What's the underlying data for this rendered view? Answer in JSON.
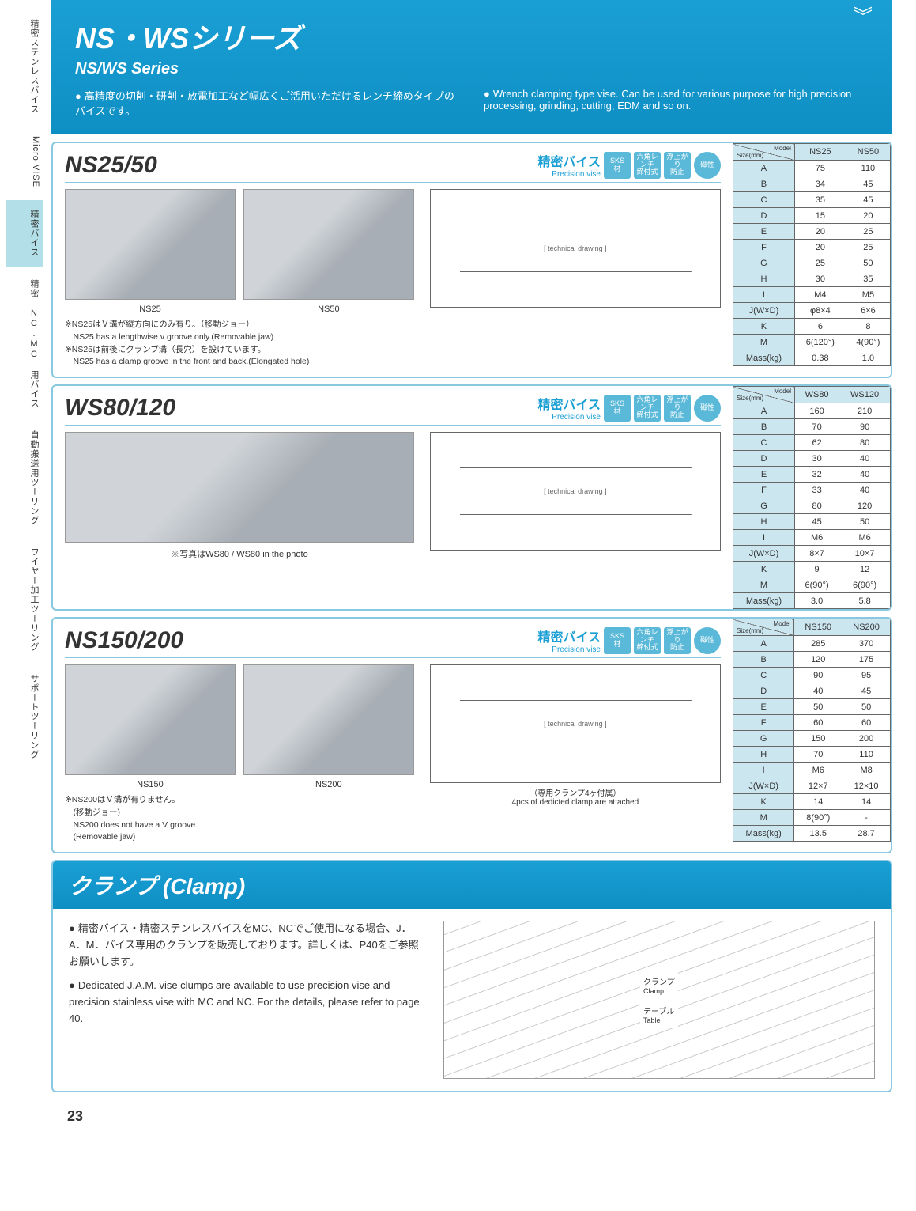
{
  "sidebar": {
    "tabs": [
      {
        "label": "精密ステンレスバイス",
        "active": false
      },
      {
        "label": "Micro VISE",
        "active": false,
        "en": true
      },
      {
        "label": "精密バイス",
        "active": true
      },
      {
        "label": "精密 NC.MC 用バイス",
        "active": false
      },
      {
        "label": "自動搬送用ツーリング",
        "active": false
      },
      {
        "label": "ワイヤー加工ツーリング",
        "active": false
      },
      {
        "label": "サポートツーリング",
        "active": false
      }
    ]
  },
  "header": {
    "title_jp": "NS・WSシリーズ",
    "title_en": "NS/WS Series",
    "desc_jp": "高精度の切削・研削・放電加工など幅広くご活用いただけるレンチ締めタイプのバイスです。",
    "desc_en": "Wrench clamping type vise. Can be used for various purpose for high precision processing, grinding, cutting, EDM and so on."
  },
  "category_label_jp": "精密バイス",
  "category_label_en": "Precision vise",
  "badge_texts": [
    "SKS\n材",
    "六角レンチ\n締付式",
    "浮上がり\n防止",
    "磁性"
  ],
  "products": [
    {
      "title": "NS25/50",
      "photo_labels": [
        "NS25",
        "NS50"
      ],
      "notes": [
        "※NS25はＶ溝が縦方向にのみ有り。（移動ジョー）",
        "　NS25 has a lengthwise v groove only.(Removable jaw)",
        "※NS25は前後にクランプ溝（長穴）を設けています。",
        "　NS25 has a clamp groove in the front and back.(Elongated hole)"
      ],
      "diagram_note": "",
      "table": {
        "models": [
          "NS25",
          "NS50"
        ],
        "rows": [
          {
            "p": "A",
            "v": [
              "75",
              "110"
            ]
          },
          {
            "p": "B",
            "v": [
              "34",
              "45"
            ]
          },
          {
            "p": "C",
            "v": [
              "35",
              "45"
            ]
          },
          {
            "p": "D",
            "v": [
              "15",
              "20"
            ]
          },
          {
            "p": "E",
            "v": [
              "20",
              "25"
            ]
          },
          {
            "p": "F",
            "v": [
              "20",
              "25"
            ]
          },
          {
            "p": "G",
            "v": [
              "25",
              "50"
            ]
          },
          {
            "p": "H",
            "v": [
              "30",
              "35"
            ]
          },
          {
            "p": "I",
            "v": [
              "M4",
              "M5"
            ]
          },
          {
            "p": "J(W×D)",
            "v": [
              "φ8×4",
              "6×6"
            ]
          },
          {
            "p": "K",
            "v": [
              "6",
              "8"
            ]
          },
          {
            "p": "M",
            "v": [
              "6(120°)",
              "4(90°)"
            ]
          },
          {
            "p": "Mass(kg)",
            "v": [
              "0.38",
              "1.0"
            ]
          }
        ]
      }
    },
    {
      "title": "WS80/120",
      "photo_labels": [
        "※写真はWS80 / WS80 in the photo"
      ],
      "notes": [],
      "diagram_note": "",
      "table": {
        "models": [
          "WS80",
          "WS120"
        ],
        "rows": [
          {
            "p": "A",
            "v": [
              "160",
              "210"
            ]
          },
          {
            "p": "B",
            "v": [
              "70",
              "90"
            ]
          },
          {
            "p": "C",
            "v": [
              "62",
              "80"
            ]
          },
          {
            "p": "D",
            "v": [
              "30",
              "40"
            ]
          },
          {
            "p": "E",
            "v": [
              "32",
              "40"
            ]
          },
          {
            "p": "F",
            "v": [
              "33",
              "40"
            ]
          },
          {
            "p": "G",
            "v": [
              "80",
              "120"
            ]
          },
          {
            "p": "H",
            "v": [
              "45",
              "50"
            ]
          },
          {
            "p": "I",
            "v": [
              "M6",
              "M6"
            ]
          },
          {
            "p": "J(W×D)",
            "v": [
              "8×7",
              "10×7"
            ]
          },
          {
            "p": "K",
            "v": [
              "9",
              "12"
            ]
          },
          {
            "p": "M",
            "v": [
              "6(90°)",
              "6(90°)"
            ]
          },
          {
            "p": "Mass(kg)",
            "v": [
              "3.0",
              "5.8"
            ]
          }
        ]
      }
    },
    {
      "title": "NS150/200",
      "photo_labels": [
        "NS150",
        "NS200"
      ],
      "notes": [
        "※NS200はＶ溝が有りません。",
        "　(移動ジョー)",
        "　NS200 does not have a V groove.",
        "　(Removable jaw)"
      ],
      "diagram_note": "（専用クランプ4ヶ付属）\n4pcs of dedicted clamp are attached",
      "table": {
        "models": [
          "NS150",
          "NS200"
        ],
        "rows": [
          {
            "p": "A",
            "v": [
              "285",
              "370"
            ]
          },
          {
            "p": "B",
            "v": [
              "120",
              "175"
            ]
          },
          {
            "p": "C",
            "v": [
              "90",
              "95"
            ]
          },
          {
            "p": "D",
            "v": [
              "40",
              "45"
            ]
          },
          {
            "p": "E",
            "v": [
              "50",
              "50"
            ]
          },
          {
            "p": "F",
            "v": [
              "60",
              "60"
            ]
          },
          {
            "p": "G",
            "v": [
              "150",
              "200"
            ]
          },
          {
            "p": "H",
            "v": [
              "70",
              "110"
            ]
          },
          {
            "p": "I",
            "v": [
              "M6",
              "M8"
            ]
          },
          {
            "p": "J(W×D)",
            "v": [
              "12×7",
              "12×10"
            ]
          },
          {
            "p": "K",
            "v": [
              "14",
              "14"
            ]
          },
          {
            "p": "M",
            "v": [
              "8(90°)",
              "-"
            ]
          },
          {
            "p": "Mass(kg)",
            "v": [
              "13.5",
              "28.7"
            ]
          }
        ]
      }
    }
  ],
  "clamp": {
    "title": "クランプ (Clamp)",
    "text_jp": "精密バイス・精密ステンレスバイスをMC、NCでご使用になる場合、J．A．M．バイス専用のクランプを販売しております。詳しくは、P40をご参照お願いします。",
    "text_en": "Dedicated J.A.M. vise clumps are available to use precision vise and precision stainless vise with MC and NC. For the details, please refer to page 40.",
    "diagram_labels": {
      "clamp_jp": "クランプ",
      "clamp_en": "Clamp",
      "table_jp": "テーブル",
      "table_en": "Table"
    }
  },
  "page_number": "23",
  "colors": {
    "primary": "#1a9fd4",
    "border": "#88c8e0",
    "badge": "#5ab8d8",
    "table_hdr": "#cce6f0"
  }
}
